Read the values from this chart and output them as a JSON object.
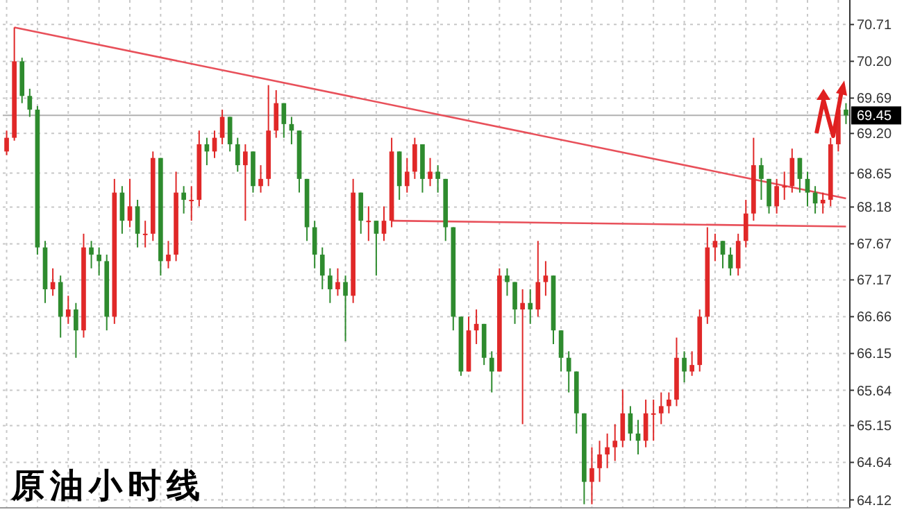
{
  "chart_data": {
    "type": "candlestick",
    "title": "原油小时线",
    "categories": [
      null,
      null,
      null,
      null,
      null,
      null,
      null,
      null,
      null,
      null,
      null,
      null,
      null,
      null,
      null,
      null,
      null,
      null,
      null,
      null,
      null,
      null,
      null,
      null,
      null,
      null,
      null,
      null,
      null,
      null,
      null,
      null,
      null,
      null,
      null,
      null,
      null,
      null,
      null,
      null,
      null,
      null,
      null,
      null,
      null,
      null,
      null,
      null,
      null,
      null,
      null,
      null,
      null,
      null,
      null,
      null,
      null,
      null,
      null,
      null,
      null,
      null,
      null,
      null,
      null,
      null,
      null,
      null,
      null,
      null,
      null,
      null,
      null,
      null,
      null,
      null,
      null,
      null,
      null,
      null,
      null,
      null,
      null,
      null,
      null,
      null,
      null,
      null,
      null,
      null,
      null,
      null,
      null,
      null,
      null,
      null,
      null,
      null,
      null,
      null,
      null,
      null,
      null,
      null,
      null,
      null,
      null,
      null,
      null,
      null
    ],
    "ohlc": [
      [
        68.95,
        69.24,
        68.9,
        69.14
      ],
      [
        69.14,
        70.67,
        69.1,
        70.2
      ],
      [
        70.2,
        70.25,
        69.62,
        69.72
      ],
      [
        69.72,
        69.82,
        69.43,
        69.53
      ],
      [
        69.53,
        69.58,
        67.52,
        67.62
      ],
      [
        67.62,
        67.71,
        66.85,
        67.04
      ],
      [
        67.04,
        67.33,
        66.95,
        67.14
      ],
      [
        67.14,
        67.23,
        66.37,
        66.66
      ],
      [
        66.66,
        66.95,
        66.56,
        66.76
      ],
      [
        66.76,
        66.85,
        66.09,
        66.47
      ],
      [
        66.47,
        67.81,
        66.37,
        67.62
      ],
      [
        67.62,
        67.71,
        67.33,
        67.52
      ],
      [
        67.52,
        67.62,
        67.23,
        67.43
      ],
      [
        67.43,
        67.52,
        66.47,
        66.66
      ],
      [
        66.66,
        68.57,
        66.56,
        68.38
      ],
      [
        68.38,
        68.47,
        67.81,
        67.99
      ],
      [
        67.99,
        68.57,
        67.9,
        68.19
      ],
      [
        68.19,
        68.28,
        67.62,
        67.81
      ],
      [
        67.81,
        67.99,
        67.62,
        67.81
      ],
      [
        67.81,
        68.95,
        67.71,
        68.86
      ],
      [
        68.86,
        68.86,
        67.23,
        67.43
      ],
      [
        67.43,
        67.71,
        67.33,
        67.52
      ],
      [
        67.52,
        68.67,
        67.43,
        68.38
      ],
      [
        68.38,
        68.47,
        68.09,
        68.28
      ],
      [
        68.28,
        68.47,
        67.99,
        68.28
      ],
      [
        68.28,
        69.24,
        68.19,
        69.05
      ],
      [
        69.05,
        69.14,
        68.76,
        68.95
      ],
      [
        68.95,
        69.24,
        68.86,
        69.14
      ],
      [
        69.14,
        69.53,
        69.05,
        69.43
      ],
      [
        69.43,
        69.43,
        68.95,
        69.05
      ],
      [
        69.05,
        69.14,
        68.67,
        68.76
      ],
      [
        68.76,
        69.05,
        67.99,
        68.95
      ],
      [
        68.95,
        68.95,
        68.38,
        68.47
      ],
      [
        68.47,
        68.76,
        68.38,
        68.57
      ],
      [
        68.57,
        69.87,
        68.47,
        69.24
      ],
      [
        69.24,
        69.8,
        69.14,
        69.62
      ],
      [
        69.62,
        69.62,
        69.14,
        69.33
      ],
      [
        69.33,
        69.43,
        69.05,
        69.24
      ],
      [
        69.24,
        69.24,
        68.38,
        68.57
      ],
      [
        68.57,
        68.57,
        67.71,
        67.9
      ],
      [
        67.9,
        67.99,
        67.33,
        67.52
      ],
      [
        67.52,
        67.62,
        67.04,
        67.23
      ],
      [
        67.23,
        67.33,
        66.85,
        67.04
      ],
      [
        67.04,
        67.33,
        66.95,
        67.14
      ],
      [
        67.14,
        67.23,
        66.32,
        66.95
      ],
      [
        66.95,
        68.57,
        66.85,
        68.38
      ],
      [
        68.38,
        68.38,
        67.81,
        67.99
      ],
      [
        67.99,
        68.19,
        67.71,
        67.99
      ],
      [
        67.99,
        67.99,
        67.23,
        67.81
      ],
      [
        67.81,
        68.19,
        67.71,
        67.99
      ],
      [
        67.99,
        69.14,
        67.9,
        68.95
      ],
      [
        68.95,
        68.95,
        68.28,
        68.47
      ],
      [
        68.47,
        68.86,
        68.38,
        68.67
      ],
      [
        68.67,
        69.14,
        68.57,
        69.05
      ],
      [
        69.05,
        69.05,
        68.38,
        68.57
      ],
      [
        68.57,
        68.86,
        68.47,
        68.67
      ],
      [
        68.67,
        68.76,
        68.38,
        68.57
      ],
      [
        68.57,
        68.57,
        67.71,
        67.9
      ],
      [
        67.9,
        67.9,
        66.47,
        66.66
      ],
      [
        66.66,
        66.66,
        65.84,
        65.9
      ],
      [
        65.9,
        66.66,
        65.9,
        66.47
      ],
      [
        66.47,
        66.76,
        66.28,
        66.56
      ],
      [
        66.56,
        66.56,
        65.99,
        66.09
      ],
      [
        66.09,
        66.18,
        65.61,
        65.9
      ],
      [
        65.9,
        67.33,
        65.9,
        67.23
      ],
      [
        67.23,
        67.33,
        66.95,
        67.14
      ],
      [
        67.14,
        67.14,
        66.56,
        66.76
      ],
      [
        66.76,
        67.04,
        65.17,
        66.85
      ],
      [
        66.85,
        67.04,
        66.56,
        66.76
      ],
      [
        66.76,
        67.71,
        66.66,
        67.14
      ],
      [
        67.14,
        67.43,
        66.95,
        67.23
      ],
      [
        67.23,
        67.23,
        66.28,
        66.47
      ],
      [
        66.47,
        66.47,
        65.9,
        66.09
      ],
      [
        66.09,
        66.18,
        65.61,
        65.9
      ],
      [
        65.9,
        65.9,
        65.04,
        65.32
      ],
      [
        65.32,
        65.32,
        64.06,
        64.37
      ],
      [
        64.37,
        64.85,
        64.06,
        64.56
      ],
      [
        64.56,
        64.94,
        64.37,
        64.75
      ],
      [
        64.75,
        65.04,
        64.56,
        64.85
      ],
      [
        64.85,
        65.17,
        64.66,
        64.94
      ],
      [
        64.94,
        65.65,
        64.85,
        65.32
      ],
      [
        65.32,
        65.42,
        64.94,
        65.04
      ],
      [
        65.04,
        65.23,
        64.75,
        64.94
      ],
      [
        64.94,
        65.51,
        64.85,
        65.32
      ],
      [
        65.32,
        65.51,
        64.94,
        65.32
      ],
      [
        65.32,
        65.61,
        65.17,
        65.42
      ],
      [
        65.42,
        65.61,
        65.32,
        65.51
      ],
      [
        65.51,
        66.37,
        65.42,
        66.09
      ],
      [
        66.09,
        66.18,
        65.75,
        65.9
      ],
      [
        65.9,
        66.18,
        65.84,
        65.99
      ],
      [
        65.99,
        66.76,
        65.9,
        66.66
      ],
      [
        66.66,
        67.9,
        66.56,
        67.62
      ],
      [
        67.62,
        67.81,
        67.43,
        67.71
      ],
      [
        67.71,
        67.71,
        67.33,
        67.52
      ],
      [
        67.52,
        67.62,
        67.23,
        67.33
      ],
      [
        67.33,
        67.81,
        67.23,
        67.71
      ],
      [
        67.71,
        68.28,
        67.62,
        68.09
      ],
      [
        68.09,
        69.14,
        67.99,
        68.76
      ],
      [
        68.76,
        68.86,
        68.28,
        68.57
      ],
      [
        68.57,
        68.57,
        68.09,
        68.19
      ],
      [
        68.19,
        68.57,
        68.09,
        68.47
      ],
      [
        68.47,
        68.67,
        68.28,
        68.47
      ],
      [
        68.47,
        68.99,
        68.38,
        68.86
      ],
      [
        68.86,
        68.86,
        68.38,
        68.57
      ],
      [
        68.57,
        68.67,
        68.19,
        68.38
      ],
      [
        68.38,
        68.47,
        68.09,
        68.23
      ],
      [
        68.23,
        68.38,
        68.09,
        68.28
      ],
      [
        68.28,
        69.14,
        68.19,
        69.05
      ],
      [
        69.05,
        69.62,
        68.95,
        69.53
      ],
      [
        69.53,
        69.62,
        69.33,
        69.45
      ]
    ],
    "colors": [
      "#e02828",
      "#e02828",
      "#2e8b2e",
      "#2e8b2e",
      "#2e8b2e",
      "#2e8b2e",
      "#e02828",
      "#2e8b2e",
      "#e02828",
      "#2e8b2e",
      "#e02828",
      "#2e8b2e",
      "#2e8b2e",
      "#2e8b2e",
      "#e02828",
      "#2e8b2e",
      "#e02828",
      "#2e8b2e",
      "#e02828",
      "#e02828",
      "#2e8b2e",
      "#e02828",
      "#e02828",
      "#2e8b2e",
      "#e02828",
      "#e02828",
      "#2e8b2e",
      "#e02828",
      "#e02828",
      "#2e8b2e",
      "#2e8b2e",
      "#e02828",
      "#2e8b2e",
      "#e02828",
      "#e02828",
      "#e02828",
      "#2e8b2e",
      "#2e8b2e",
      "#2e8b2e",
      "#2e8b2e",
      "#2e8b2e",
      "#2e8b2e",
      "#2e8b2e",
      "#e02828",
      "#2e8b2e",
      "#e02828",
      "#2e8b2e",
      "#e02828",
      "#2e8b2e",
      "#e02828",
      "#e02828",
      "#2e8b2e",
      "#e02828",
      "#e02828",
      "#2e8b2e",
      "#e02828",
      "#2e8b2e",
      "#2e8b2e",
      "#2e8b2e",
      "#2e8b2e",
      "#e02828",
      "#e02828",
      "#2e8b2e",
      "#2e8b2e",
      "#e02828",
      "#2e8b2e",
      "#2e8b2e",
      "#e02828",
      "#2e8b2e",
      "#e02828",
      "#e02828",
      "#2e8b2e",
      "#2e8b2e",
      "#2e8b2e",
      "#2e8b2e",
      "#2e8b2e",
      "#e02828",
      "#e02828",
      "#e02828",
      "#e02828",
      "#e02828",
      "#2e8b2e",
      "#2e8b2e",
      "#e02828",
      "#e02828",
      "#e02828",
      "#e02828",
      "#e02828",
      "#2e8b2e",
      "#e02828",
      "#e02828",
      "#e02828",
      "#e02828",
      "#2e8b2e",
      "#2e8b2e",
      "#e02828",
      "#e02828",
      "#e02828",
      "#2e8b2e",
      "#2e8b2e",
      "#e02828",
      "#e02828",
      "#e02828",
      "#2e8b2e",
      "#2e8b2e",
      "#2e8b2e",
      "#e02828",
      "#e02828",
      "#e02828",
      "#2e8b2e"
    ],
    "series": [
      {
        "type": "line",
        "color": "#e8505a",
        "values": [
          null,
          70.67,
          null,
          null,
          null,
          null,
          null,
          null,
          null,
          null,
          null,
          null,
          null,
          null,
          null,
          null,
          null,
          null,
          null,
          null,
          null,
          null,
          null,
          null,
          null,
          null,
          null,
          null,
          null,
          null,
          null,
          null,
          null,
          null,
          null,
          null,
          null,
          null,
          null,
          null,
          null,
          null,
          null,
          null,
          null,
          null,
          null,
          null,
          null,
          null,
          null,
          null,
          null,
          null,
          null,
          null,
          null,
          null,
          null,
          null,
          null,
          null,
          null,
          null,
          null,
          null,
          null,
          null,
          null,
          null,
          null,
          null,
          null,
          null,
          null,
          null,
          null,
          null,
          null,
          null,
          null,
          null,
          null,
          null,
          null,
          null,
          null,
          null,
          null,
          null,
          null,
          null,
          null,
          null,
          null,
          null,
          null,
          null,
          null,
          null,
          null,
          null,
          null,
          null,
          null,
          null,
          null,
          null,
          null,
          68.3
        ]
      },
      {
        "type": "line",
        "color": "#e8505a",
        "values": [
          null,
          null,
          null,
          null,
          null,
          null,
          null,
          null,
          null,
          null,
          null,
          null,
          null,
          null,
          null,
          null,
          null,
          null,
          null,
          null,
          null,
          null,
          null,
          null,
          null,
          null,
          null,
          null,
          null,
          null,
          null,
          null,
          null,
          null,
          null,
          null,
          null,
          null,
          null,
          null,
          null,
          null,
          null,
          null,
          null,
          null,
          null,
          null,
          null,
          null,
          67.99,
          null,
          null,
          null,
          null,
          null,
          null,
          null,
          null,
          null,
          null,
          null,
          null,
          null,
          null,
          null,
          null,
          null,
          null,
          null,
          null,
          null,
          null,
          null,
          null,
          null,
          null,
          null,
          null,
          null,
          null,
          null,
          null,
          null,
          null,
          null,
          null,
          null,
          null,
          null,
          null,
          null,
          null,
          null,
          null,
          null,
          null,
          null,
          null,
          null,
          null,
          null,
          null,
          null,
          null,
          null,
          null,
          null,
          null,
          67.91
        ]
      }
    ],
    "ylim": [
      64.01,
      71.05
    ],
    "yticks": [
      70.71,
      {
        "value": 70.2,
        "label": "70.20"
      },
      69.69,
      {
        "value": 69.2,
        "label": "69.20"
      },
      68.65,
      68.18,
      67.67,
      67.17,
      66.66,
      66.15,
      65.64,
      65.15,
      64.64,
      64.12
    ],
    "grid": true,
    "ref_lines": [
      {
        "axis": "y",
        "value": 69.45,
        "label": "69.45",
        "color": "#b0b0b0"
      }
    ]
  }
}
